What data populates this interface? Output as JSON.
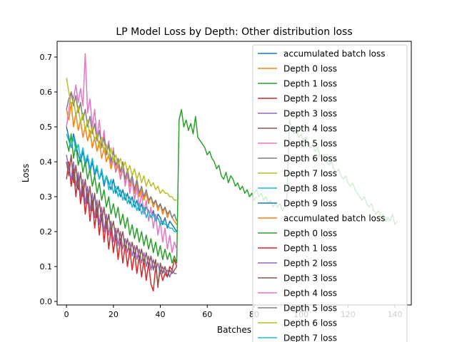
{
  "chart_data": {
    "type": "line",
    "title": "LP Model Loss by Depth: Other distribution loss",
    "xlabel": "Batches",
    "ylabel": "Loss",
    "xlim": [
      -4,
      147
    ],
    "ylim": [
      -0.01,
      0.745
    ],
    "xticks": [
      0,
      20,
      40,
      60,
      80,
      100,
      120,
      140
    ],
    "yticks": [
      0.0,
      0.1,
      0.2,
      0.3,
      0.4,
      0.5,
      0.6,
      0.7
    ],
    "grid": false,
    "legend_position": "top-right",
    "legend": [
      {
        "label": "accumulated batch loss",
        "color": "#1f77b4"
      },
      {
        "label": "Depth 0 loss",
        "color": "#ff7f0e"
      },
      {
        "label": "Depth 1 loss",
        "color": "#2ca02c"
      },
      {
        "label": "Depth 2 loss",
        "color": "#d62728"
      },
      {
        "label": "Depth 3 loss",
        "color": "#9467bd"
      },
      {
        "label": "Depth 4 loss",
        "color": "#8c564b"
      },
      {
        "label": "Depth 5 loss",
        "color": "#e377c2"
      },
      {
        "label": "Depth 6 loss",
        "color": "#7f7f7f"
      },
      {
        "label": "Depth 7 loss",
        "color": "#bcbd22"
      },
      {
        "label": "Depth 8 loss",
        "color": "#17becf"
      },
      {
        "label": "Depth 9 loss",
        "color": "#1f77b4"
      },
      {
        "label": "accumulated batch loss",
        "color": "#ff7f0e"
      },
      {
        "label": "Depth 0 loss",
        "color": "#2ca02c"
      },
      {
        "label": "Depth 1 loss",
        "color": "#d62728"
      },
      {
        "label": "Depth 2 loss",
        "color": "#9467bd"
      },
      {
        "label": "Depth 3 loss",
        "color": "#8c564b"
      },
      {
        "label": "Depth 4 loss",
        "color": "#e377c2"
      },
      {
        "label": "Depth 5 loss",
        "color": "#7f7f7f"
      },
      {
        "label": "Depth 6 loss",
        "color": "#bcbd22"
      },
      {
        "label": "Depth 7 loss",
        "color": "#17becf"
      }
    ],
    "series": [
      {
        "color": "#1f77b4",
        "x_start": 0,
        "values": [
          0.5,
          0.47,
          0.44,
          0.48,
          0.45,
          0.42,
          0.4,
          0.43,
          0.39,
          0.41,
          0.37,
          0.4,
          0.36,
          0.38,
          0.35,
          0.37,
          0.33,
          0.36,
          0.34,
          0.32,
          0.35,
          0.31,
          0.33,
          0.3,
          0.32,
          0.29,
          0.31,
          0.28,
          0.3,
          0.27,
          0.29,
          0.26,
          0.28,
          0.25,
          0.27,
          0.26,
          0.24,
          0.26,
          0.23,
          0.25,
          0.24,
          0.22,
          0.24,
          0.21,
          0.23,
          0.22,
          0.21,
          0.2
        ]
      },
      {
        "color": "#ff7f0e",
        "x_start": 0,
        "values": [
          0.55,
          0.52,
          0.57,
          0.5,
          0.54,
          0.49,
          0.52,
          0.47,
          0.5,
          0.46,
          0.49,
          0.44,
          0.47,
          0.43,
          0.46,
          0.41,
          0.44,
          0.4,
          0.42,
          0.38,
          0.41,
          0.37,
          0.39,
          0.35,
          0.38,
          0.34,
          0.36,
          0.33,
          0.35,
          0.31,
          0.34,
          0.3,
          0.32,
          0.29,
          0.31,
          0.28,
          0.3,
          0.27,
          0.29,
          0.26,
          0.28,
          0.25,
          0.27,
          0.24,
          0.26,
          0.24,
          0.23,
          0.22
        ]
      },
      {
        "color": "#2ca02c",
        "x_start": 0,
        "values": [
          0.46,
          0.43,
          0.48,
          0.41,
          0.45,
          0.39,
          0.42,
          0.37,
          0.4,
          0.35,
          0.38,
          0.33,
          0.36,
          0.31,
          0.34,
          0.29,
          0.32,
          0.27,
          0.3,
          0.25,
          0.28,
          0.24,
          0.27,
          0.22,
          0.25,
          0.21,
          0.24,
          0.19,
          0.22,
          0.18,
          0.21,
          0.17,
          0.2,
          0.16,
          0.19,
          0.15,
          0.18,
          0.14,
          0.17,
          0.13,
          0.16,
          0.12,
          0.15,
          0.12,
          0.14,
          0.11,
          0.13,
          0.11,
          0.52,
          0.55,
          0.5,
          0.52,
          0.49,
          0.51,
          0.48,
          0.53,
          0.47,
          0.46,
          0.45,
          0.44,
          0.42,
          0.43,
          0.41,
          0.4,
          0.38,
          0.39,
          0.36,
          0.35,
          0.37,
          0.34,
          0.36,
          0.35,
          0.33,
          0.34,
          0.32,
          0.33,
          0.31,
          0.32,
          0.3,
          0.31,
          0.29,
          0.3
        ]
      },
      {
        "color": "#d62728",
        "x_start": 0,
        "values": [
          0.35,
          0.4,
          0.33,
          0.38,
          0.3,
          0.36,
          0.28,
          0.33,
          0.25,
          0.31,
          0.23,
          0.29,
          0.21,
          0.27,
          0.19,
          0.25,
          0.17,
          0.23,
          0.15,
          0.21,
          0.14,
          0.19,
          0.12,
          0.18,
          0.11,
          0.16,
          0.1,
          0.15,
          0.09,
          0.14,
          0.08,
          0.13,
          0.07,
          0.12,
          0.06,
          0.11,
          0.05,
          0.03,
          0.1,
          0.05,
          0.09,
          0.06,
          0.08,
          0.07,
          0.1,
          0.09,
          0.12,
          0.1
        ]
      },
      {
        "color": "#9467bd",
        "x_start": 0,
        "values": [
          0.42,
          0.38,
          0.35,
          0.4,
          0.33,
          0.37,
          0.3,
          0.35,
          0.28,
          0.33,
          0.26,
          0.31,
          0.24,
          0.29,
          0.22,
          0.27,
          0.2,
          0.25,
          0.19,
          0.23,
          0.17,
          0.21,
          0.16,
          0.2,
          0.15,
          0.18,
          0.14,
          0.17,
          0.13,
          0.16,
          0.12,
          0.15,
          0.11,
          0.14,
          0.1,
          0.13,
          0.09,
          0.12,
          0.09,
          0.11,
          0.08,
          0.1,
          0.08,
          0.09,
          0.07,
          0.09,
          0.08,
          0.08
        ]
      },
      {
        "color": "#8c564b",
        "x_start": 0,
        "values": [
          0.4,
          0.36,
          0.42,
          0.34,
          0.39,
          0.32,
          0.37,
          0.3,
          0.35,
          0.28,
          0.33,
          0.26,
          0.31,
          0.24,
          0.29,
          0.23,
          0.27,
          0.21,
          0.25,
          0.2,
          0.23,
          0.18,
          0.21,
          0.17,
          0.2,
          0.15,
          0.18,
          0.14,
          0.17,
          0.13,
          0.16,
          0.12,
          0.15,
          0.11,
          0.14,
          0.1,
          0.13,
          0.09,
          0.12,
          0.04,
          0.11,
          0.08,
          0.1,
          0.07,
          0.09,
          0.08,
          0.09,
          0.1
        ]
      },
      {
        "color": "#e377c2",
        "x_start": 0,
        "values": [
          0.5,
          0.55,
          0.6,
          0.58,
          0.62,
          0.57,
          0.61,
          0.56,
          0.71,
          0.54,
          0.58,
          0.5,
          0.55,
          0.47,
          0.52,
          0.44,
          0.49,
          0.42,
          0.46,
          0.39,
          0.44,
          0.37,
          0.41,
          0.35,
          0.39,
          0.33,
          0.37,
          0.31,
          0.35,
          0.29,
          0.33,
          0.27,
          0.31,
          0.25,
          0.29,
          0.23,
          0.27,
          0.21,
          0.25,
          0.19,
          0.23,
          0.17,
          0.21,
          0.15,
          0.19,
          0.14,
          0.17,
          0.15
        ]
      },
      {
        "color": "#7f7f7f",
        "x_start": 0,
        "values": [
          0.55,
          0.58,
          0.6,
          0.56,
          0.59,
          0.54,
          0.57,
          0.52,
          0.55,
          0.5,
          0.53,
          0.48,
          0.51,
          0.46,
          0.49,
          0.44,
          0.47,
          0.42,
          0.45,
          0.4,
          0.43,
          0.39,
          0.41,
          0.37,
          0.4,
          0.35,
          0.38,
          0.34,
          0.36,
          0.32,
          0.35,
          0.31,
          0.33,
          0.3,
          0.32,
          0.29,
          0.3,
          0.28,
          0.29,
          0.27,
          0.28,
          0.26,
          0.27,
          0.25,
          0.26,
          0.24,
          0.25,
          0.23
        ]
      },
      {
        "color": "#bcbd22",
        "x_start": 0,
        "values": [
          0.64,
          0.6,
          0.56,
          0.58,
          0.53,
          0.56,
          0.51,
          0.54,
          0.49,
          0.52,
          0.47,
          0.5,
          0.46,
          0.48,
          0.44,
          0.47,
          0.43,
          0.45,
          0.41,
          0.44,
          0.4,
          0.42,
          0.39,
          0.41,
          0.38,
          0.4,
          0.37,
          0.39,
          0.36,
          0.38,
          0.35,
          0.37,
          0.34,
          0.36,
          0.33,
          0.35,
          0.33,
          0.34,
          0.32,
          0.33,
          0.31,
          0.32,
          0.31,
          0.31,
          0.3,
          0.3,
          0.29,
          0.29
        ]
      },
      {
        "color": "#17becf",
        "x_start": 0,
        "values": [
          0.48,
          0.46,
          0.44,
          0.47,
          0.43,
          0.45,
          0.41,
          0.44,
          0.4,
          0.42,
          0.38,
          0.41,
          0.37,
          0.39,
          0.35,
          0.38,
          0.34,
          0.36,
          0.32,
          0.35,
          0.31,
          0.33,
          0.3,
          0.32,
          0.29,
          0.31,
          0.28,
          0.3,
          0.27,
          0.29,
          0.26,
          0.28,
          0.25,
          0.27,
          0.24,
          0.26,
          0.24,
          0.25,
          0.23,
          0.24,
          0.22,
          0.23,
          0.22,
          0.22,
          0.21,
          0.21,
          0.2,
          0.2
        ]
      },
      {
        "color": "#2ca02c",
        "x_start": 80,
        "values": [
          0.31,
          0.32,
          0.3,
          0.31,
          0.29,
          0.3,
          0.28,
          0.29,
          0.27,
          0.28,
          0.27,
          0.28,
          0.26,
          0.27,
          0.3,
          0.52,
          0.5,
          0.48,
          0.49,
          0.47,
          0.48,
          0.46,
          0.47,
          0.45,
          0.44,
          0.45,
          0.43,
          0.44,
          0.42,
          0.41,
          0.42,
          0.4,
          0.39,
          0.4,
          0.38,
          0.37,
          0.38,
          0.36,
          0.35,
          0.36,
          0.34,
          0.33,
          0.34,
          0.32,
          0.31,
          0.3,
          0.29,
          0.3,
          0.28,
          0.27,
          0.28,
          0.26,
          0.25,
          0.26,
          0.24,
          0.25,
          0.23,
          0.24,
          0.23,
          0.25,
          0.22,
          0.23
        ]
      }
    ]
  }
}
